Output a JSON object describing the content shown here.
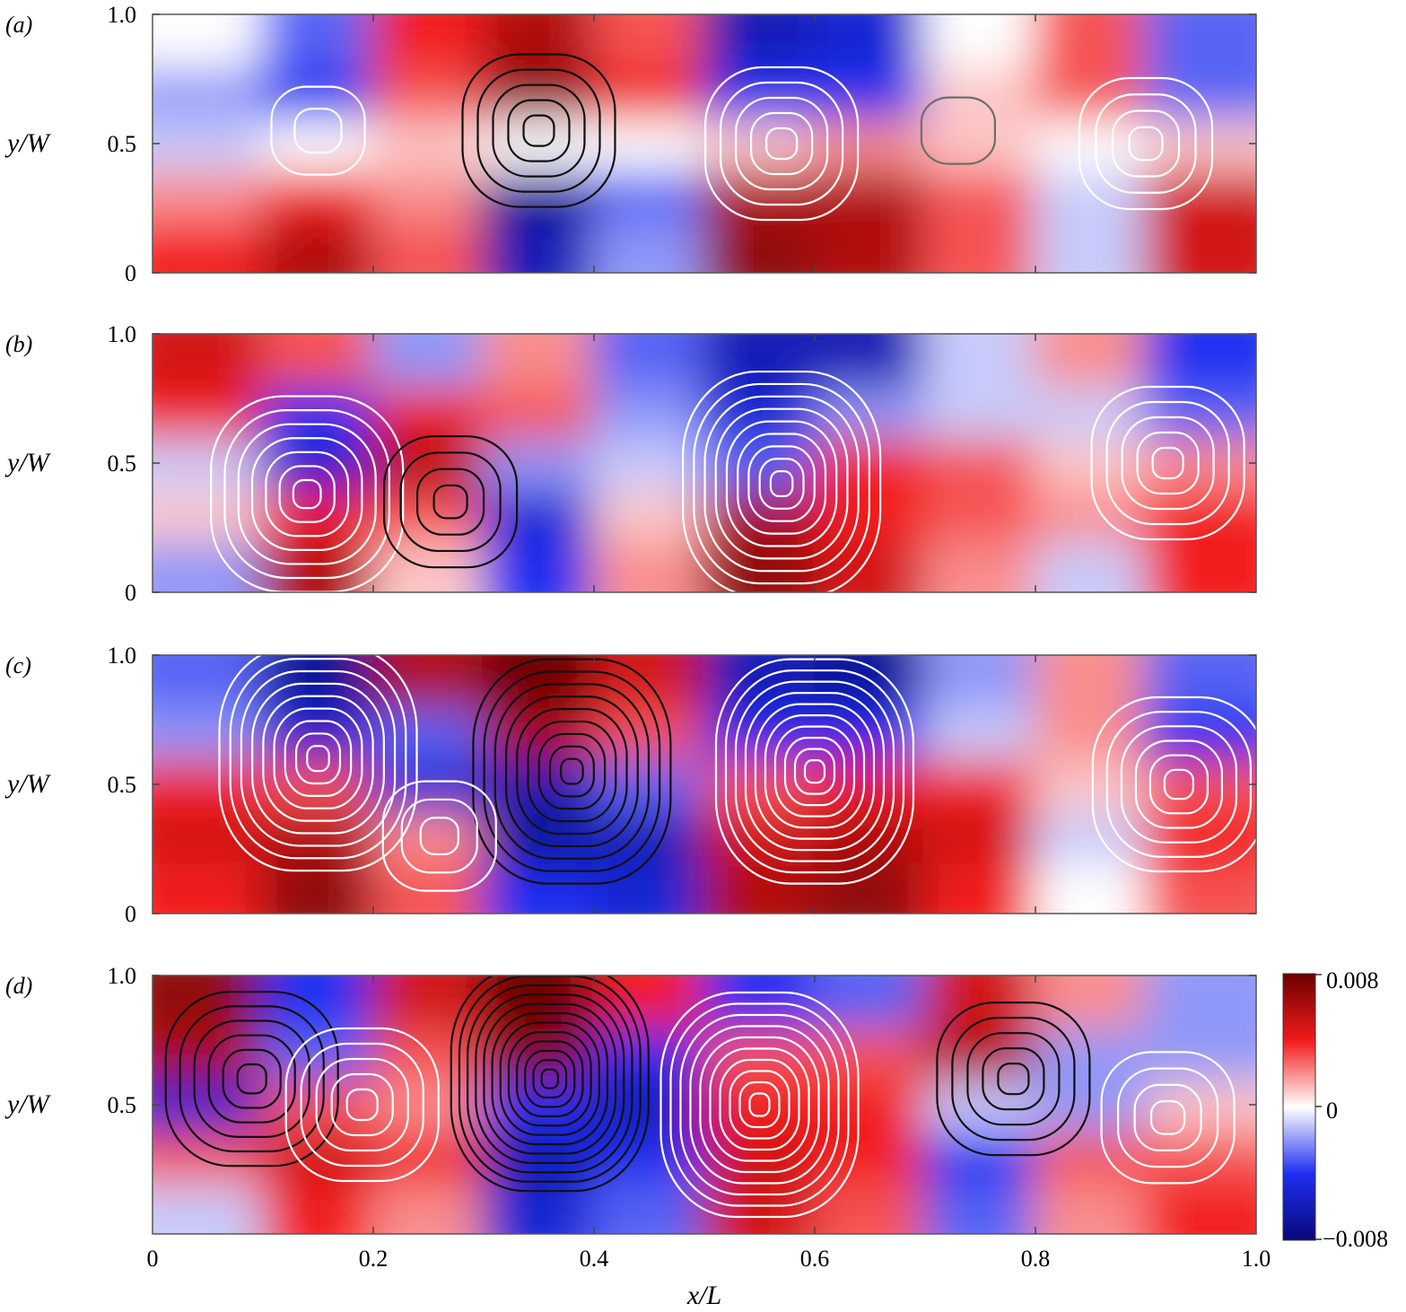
{
  "figure": {
    "colorbar": {
      "max_label": "0.008",
      "mid_label": "0",
      "min_label": "−0.008",
      "colors": {
        "min": "#08087a",
        "neg": "#1f2ff0",
        "zero": "#ffffff",
        "pos": "#f21a1a",
        "max": "#6e0000"
      }
    },
    "contour_colors": {
      "positive": "#111111",
      "negative": "#ffffff",
      "zero": "#6e6e6e"
    }
  },
  "chart_data": [
    {
      "type": "heatmap",
      "panel_label": "(a)",
      "ylabel": "y/W",
      "xlabel": "",
      "xlim": [
        0,
        1.0
      ],
      "ylim": [
        0,
        1.0
      ],
      "yticks": [
        "0",
        "0.5",
        "1.0"
      ],
      "xticks": [],
      "x_cells": [
        0.05,
        0.15,
        0.25,
        0.35,
        0.45,
        0.55,
        0.65,
        0.75,
        0.85,
        0.95
      ],
      "y_cells": [
        0.1,
        0.3,
        0.5,
        0.7,
        0.9
      ],
      "values": [
        [
          0.004,
          0.006,
          0.003,
          -0.006,
          -0.002,
          0.007,
          0.006,
          0.003,
          -0.001,
          0.005
        ],
        [
          0.002,
          0.004,
          0.002,
          -0.007,
          -0.003,
          0.006,
          0.006,
          0.003,
          -0.001,
          0.005
        ],
        [
          -0.001,
          0.0,
          0.001,
          0.0,
          0.0,
          0.001,
          0.002,
          0.001,
          0.0,
          0.001
        ],
        [
          -0.002,
          -0.004,
          0.003,
          0.007,
          0.004,
          -0.004,
          -0.004,
          0.001,
          0.003,
          -0.003
        ],
        [
          0.0,
          -0.003,
          0.004,
          0.006,
          0.003,
          -0.006,
          -0.005,
          0.0,
          0.003,
          -0.003
        ]
      ],
      "vortices": [
        {
          "x": 0.15,
          "y": 0.55,
          "sign": "negative",
          "levels": 2
        },
        {
          "x": 0.35,
          "y": 0.55,
          "sign": "positive",
          "levels": 5
        },
        {
          "x": 0.57,
          "y": 0.5,
          "sign": "negative",
          "levels": 5
        },
        {
          "x": 0.73,
          "y": 0.55,
          "sign": "zero",
          "levels": 1
        },
        {
          "x": 0.9,
          "y": 0.5,
          "sign": "negative",
          "levels": 4
        }
      ]
    },
    {
      "type": "heatmap",
      "panel_label": "(b)",
      "ylabel": "y/W",
      "xlabel": "",
      "xlim": [
        0,
        1.0
      ],
      "ylim": [
        0,
        1.0
      ],
      "yticks": [
        "0",
        "0.5",
        "1.0"
      ],
      "xticks": [],
      "x_cells": [
        0.05,
        0.15,
        0.25,
        0.35,
        0.45,
        0.55,
        0.65,
        0.75,
        0.85,
        0.95
      ],
      "y_cells": [
        0.1,
        0.3,
        0.5,
        0.7,
        0.9
      ],
      "values": [
        [
          -0.002,
          0.006,
          0.001,
          -0.004,
          0.002,
          0.007,
          0.005,
          0.002,
          -0.001,
          0.004
        ],
        [
          0.001,
          0.004,
          0.003,
          -0.005,
          0.001,
          0.006,
          0.004,
          0.003,
          0.002,
          0.004
        ],
        [
          -0.001,
          -0.005,
          0.006,
          -0.002,
          -0.001,
          -0.003,
          0.004,
          0.003,
          0.001,
          0.002
        ],
        [
          0.004,
          -0.004,
          0.004,
          0.003,
          -0.002,
          -0.005,
          -0.002,
          -0.001,
          -0.001,
          -0.003
        ],
        [
          0.005,
          0.003,
          -0.002,
          0.002,
          -0.003,
          -0.006,
          -0.006,
          -0.001,
          0.002,
          -0.004
        ]
      ],
      "vortices": [
        {
          "x": 0.14,
          "y": 0.38,
          "sign": "negative",
          "levels": 7
        },
        {
          "x": 0.27,
          "y": 0.35,
          "sign": "positive",
          "levels": 4
        },
        {
          "x": 0.57,
          "y": 0.42,
          "sign": "negative",
          "levels": 9
        },
        {
          "x": 0.92,
          "y": 0.5,
          "sign": "negative",
          "levels": 5
        }
      ]
    },
    {
      "type": "heatmap",
      "panel_label": "(c)",
      "ylabel": "y/W",
      "xlabel": "",
      "xlim": [
        0,
        1.0
      ],
      "ylim": [
        0,
        1.0
      ],
      "yticks": [
        "0",
        "0.5",
        "1.0"
      ],
      "xticks": [],
      "x_cells": [
        0.05,
        0.15,
        0.25,
        0.35,
        0.45,
        0.55,
        0.65,
        0.75,
        0.85,
        0.95
      ],
      "y_cells": [
        0.1,
        0.3,
        0.5,
        0.7,
        0.9
      ],
      "values": [
        [
          0.004,
          0.007,
          0.003,
          -0.004,
          -0.005,
          0.006,
          0.007,
          0.004,
          0.0,
          0.003
        ],
        [
          0.005,
          0.006,
          0.002,
          -0.007,
          -0.006,
          0.005,
          0.006,
          0.005,
          -0.001,
          0.004
        ],
        [
          0.004,
          0.003,
          -0.005,
          -0.006,
          -0.003,
          0.003,
          0.004,
          0.004,
          0.001,
          0.003
        ],
        [
          -0.002,
          -0.005,
          -0.003,
          0.006,
          0.003,
          -0.004,
          -0.004,
          -0.001,
          0.002,
          -0.004
        ],
        [
          -0.003,
          -0.007,
          0.006,
          0.008,
          0.005,
          -0.006,
          -0.007,
          -0.002,
          0.002,
          -0.003
        ]
      ],
      "vortices": [
        {
          "x": 0.15,
          "y": 0.6,
          "sign": "negative",
          "levels": 9
        },
        {
          "x": 0.38,
          "y": 0.55,
          "sign": "positive",
          "levels": 9
        },
        {
          "x": 0.26,
          "y": 0.3,
          "sign": "negative",
          "levels": 3
        },
        {
          "x": 0.6,
          "y": 0.55,
          "sign": "negative",
          "levels": 10
        },
        {
          "x": 0.93,
          "y": 0.5,
          "sign": "negative",
          "levels": 6
        }
      ]
    },
    {
      "type": "heatmap",
      "panel_label": "(d)",
      "ylabel": "y/W",
      "xlabel": "x/L",
      "xlim": [
        0,
        1.0
      ],
      "ylim": [
        0,
        1.0
      ],
      "yticks": [
        "0.5",
        "1.0"
      ],
      "xticks": [
        "0",
        "0.2",
        "0.4",
        "0.6",
        "0.8",
        "1.0"
      ],
      "x_cells": [
        0.05,
        0.15,
        0.25,
        0.35,
        0.45,
        0.55,
        0.65,
        0.75,
        0.85,
        0.95
      ],
      "y_cells": [
        0.1,
        0.3,
        0.5,
        0.7,
        0.9
      ],
      "values": [
        [
          -0.001,
          0.004,
          0.002,
          -0.005,
          -0.003,
          0.005,
          0.003,
          -0.003,
          0.002,
          0.004
        ],
        [
          0.003,
          0.005,
          0.004,
          -0.006,
          -0.004,
          0.005,
          0.004,
          -0.004,
          0.003,
          0.003
        ],
        [
          -0.005,
          0.003,
          0.002,
          -0.004,
          -0.006,
          0.004,
          0.004,
          -0.001,
          -0.002,
          0.001
        ],
        [
          0.006,
          -0.003,
          0.003,
          0.007,
          -0.004,
          0.003,
          0.003,
          0.006,
          -0.002,
          -0.002
        ],
        [
          0.007,
          -0.004,
          0.005,
          0.008,
          0.004,
          -0.004,
          -0.003,
          0.005,
          0.002,
          -0.002
        ]
      ],
      "vortices": [
        {
          "x": 0.09,
          "y": 0.6,
          "sign": "positive",
          "levels": 6
        },
        {
          "x": 0.19,
          "y": 0.5,
          "sign": "negative",
          "levels": 5
        },
        {
          "x": 0.36,
          "y": 0.6,
          "sign": "positive",
          "levels": 12
        },
        {
          "x": 0.55,
          "y": 0.5,
          "sign": "negative",
          "levels": 10
        },
        {
          "x": 0.78,
          "y": 0.6,
          "sign": "positive",
          "levels": 5
        },
        {
          "x": 0.92,
          "y": 0.45,
          "sign": "negative",
          "levels": 4
        }
      ]
    }
  ]
}
